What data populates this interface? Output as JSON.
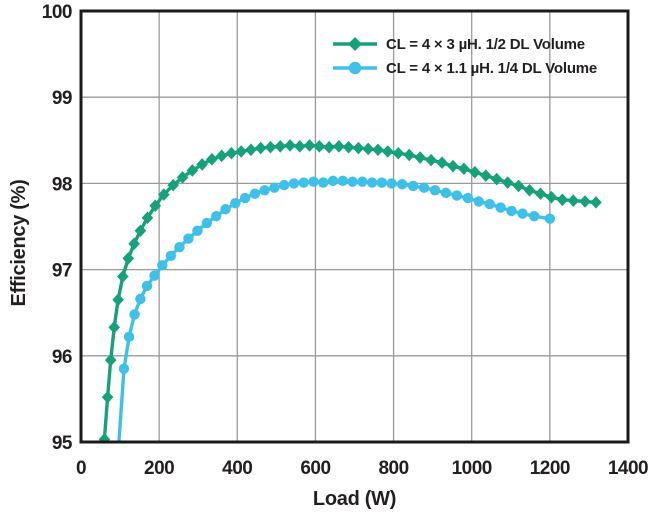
{
  "colors": {
    "series1": "#16A17B",
    "series2": "#3FC0E8",
    "axis": "#1A1A1A",
    "grid": "#9A9A9A",
    "text": "#231F20",
    "background": "#FFFFFF"
  },
  "legend": {
    "entries": [
      {
        "label": "CL = 4 × 3 µH. 1/2 DL Volume",
        "marker": "diamond",
        "color": "#16A17B"
      },
      {
        "label": "CL = 4 × 1.1 µH. 1/4 DL Volume",
        "marker": "circle",
        "color": "#3FC0E8"
      }
    ]
  },
  "chart_data": {
    "type": "line",
    "title": "",
    "xlabel": "Load (W)",
    "ylabel": "Efficiency (%)",
    "xlim": [
      0,
      1400
    ],
    "ylim": [
      95,
      100
    ],
    "xticks": [
      0,
      200,
      400,
      600,
      800,
      1000,
      1200,
      1400
    ],
    "yticks": [
      95,
      96,
      97,
      98,
      99,
      100
    ],
    "grid": true,
    "legend_position": "top-right-inside",
    "series": [
      {
        "name": "CL = 4 × 3 µH. 1/2 DL Volume",
        "marker": "diamond",
        "color": "#16A17B",
        "points": [
          [
            60,
            95.03
          ],
          [
            68,
            95.52
          ],
          [
            76,
            95.95
          ],
          [
            85,
            96.33
          ],
          [
            95,
            96.65
          ],
          [
            107,
            96.92
          ],
          [
            121,
            97.13
          ],
          [
            136,
            97.3
          ],
          [
            152,
            97.45
          ],
          [
            170,
            97.6
          ],
          [
            190,
            97.74
          ],
          [
            212,
            97.87
          ],
          [
            236,
            97.98
          ],
          [
            260,
            98.07
          ],
          [
            285,
            98.15
          ],
          [
            310,
            98.22
          ],
          [
            335,
            98.28
          ],
          [
            360,
            98.32
          ],
          [
            385,
            98.35
          ],
          [
            410,
            98.37
          ],
          [
            435,
            98.39
          ],
          [
            460,
            98.41
          ],
          [
            485,
            98.42
          ],
          [
            510,
            98.43
          ],
          [
            535,
            98.44
          ],
          [
            560,
            98.43
          ],
          [
            585,
            98.44
          ],
          [
            610,
            98.43
          ],
          [
            635,
            98.42
          ],
          [
            660,
            98.43
          ],
          [
            685,
            98.42
          ],
          [
            710,
            98.41
          ],
          [
            735,
            98.4
          ],
          [
            760,
            98.39
          ],
          [
            785,
            98.37
          ],
          [
            812,
            98.35
          ],
          [
            840,
            98.33
          ],
          [
            868,
            98.3
          ],
          [
            896,
            98.27
          ],
          [
            924,
            98.24
          ],
          [
            952,
            98.2
          ],
          [
            980,
            98.17
          ],
          [
            1008,
            98.13
          ],
          [
            1036,
            98.09
          ],
          [
            1064,
            98.05
          ],
          [
            1092,
            98.01
          ],
          [
            1120,
            97.97
          ],
          [
            1148,
            97.92
          ],
          [
            1176,
            97.88
          ],
          [
            1204,
            97.84
          ],
          [
            1232,
            97.81
          ],
          [
            1260,
            97.8
          ],
          [
            1290,
            97.79
          ],
          [
            1318,
            97.78
          ]
        ]
      },
      {
        "name": "CL = 4 × 1.1 µH. 1/4 DL Volume",
        "marker": "circle",
        "color": "#3FC0E8",
        "points": [
          [
            90,
            94.55
          ],
          [
            110,
            95.85
          ],
          [
            123,
            96.22
          ],
          [
            137,
            96.48
          ],
          [
            152,
            96.66
          ],
          [
            169,
            96.81
          ],
          [
            188,
            96.93
          ],
          [
            208,
            97.05
          ],
          [
            230,
            97.16
          ],
          [
            252,
            97.26
          ],
          [
            275,
            97.36
          ],
          [
            298,
            97.45
          ],
          [
            322,
            97.54
          ],
          [
            346,
            97.62
          ],
          [
            370,
            97.7
          ],
          [
            395,
            97.77
          ],
          [
            420,
            97.83
          ],
          [
            445,
            97.88
          ],
          [
            470,
            97.92
          ],
          [
            495,
            97.95
          ],
          [
            520,
            97.98
          ],
          [
            545,
            98.0
          ],
          [
            570,
            98.01
          ],
          [
            595,
            98.02
          ],
          [
            620,
            98.01
          ],
          [
            645,
            98.03
          ],
          [
            670,
            98.03
          ],
          [
            695,
            98.02
          ],
          [
            720,
            98.02
          ],
          [
            745,
            98.01
          ],
          [
            770,
            98.01
          ],
          [
            795,
            98.0
          ],
          [
            822,
            97.99
          ],
          [
            850,
            97.97
          ],
          [
            878,
            97.95
          ],
          [
            906,
            97.92
          ],
          [
            934,
            97.89
          ],
          [
            962,
            97.86
          ],
          [
            990,
            97.83
          ],
          [
            1018,
            97.79
          ],
          [
            1046,
            97.76
          ],
          [
            1074,
            97.72
          ],
          [
            1102,
            97.68
          ],
          [
            1130,
            97.65
          ],
          [
            1160,
            97.62
          ],
          [
            1200,
            97.59
          ]
        ]
      }
    ]
  }
}
